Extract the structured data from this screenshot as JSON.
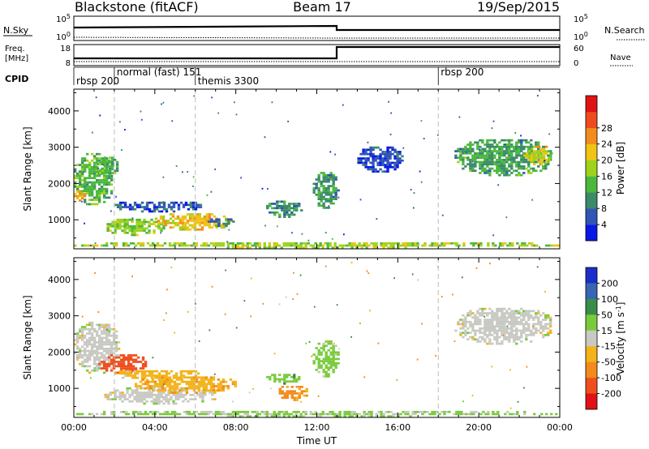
{
  "header": {
    "title_left": "Blackstone (fitACF)",
    "title_center": "Beam 17",
    "title_right": "19/Sep/2015"
  },
  "top_panels": {
    "nsky_label": "N.Sky",
    "nsearch_label": "N.Search",
    "nsky_ticks": [
      "10^5",
      "10^0"
    ],
    "nsky_ticks_right": [
      "10^5",
      "10^0"
    ],
    "freq_label_1": "Freq.",
    "freq_label_2": "[MHz]",
    "freq_ticks": [
      "18",
      "8"
    ],
    "nave_label": "Nave",
    "nave_ticks": [
      "60",
      "0"
    ],
    "cpid_label": "CPID",
    "cpid_entries": [
      {
        "label": "rbsp 200",
        "t": 0.0
      },
      {
        "label": "normal (fast) 151",
        "t": 2.0
      },
      {
        "label": "themis 3300",
        "t": 6.0
      },
      {
        "label": "rbsp 200",
        "t": 18.0
      }
    ]
  },
  "chart_data": [
    {
      "type": "heatmap",
      "xlabel": "",
      "ylabel": "Slant Range [km]",
      "xlim": [
        0,
        24
      ],
      "ylim": [
        200,
        4600
      ],
      "yticks": [
        "1000",
        "2000",
        "3000",
        "4000"
      ],
      "colorbar": {
        "label": "Power [dB]",
        "ticks": [
          "4",
          "8",
          "12",
          "16",
          "20",
          "24",
          "28"
        ],
        "colors": [
          "#0a18e6",
          "#2f55b5",
          "#3b8a6a",
          "#49b83d",
          "#9ed21c",
          "#f1c313",
          "#f28c1c",
          "#ee4c1f",
          "#e01216"
        ]
      },
      "regions": [
        {
          "t0": 0.0,
          "t1": 1.9,
          "r0": 1400,
          "r1": 2800,
          "v": 14
        },
        {
          "t0": 0.0,
          "t1": 0.6,
          "r0": 1500,
          "r1": 1800,
          "v": 24
        },
        {
          "t0": 1.0,
          "t1": 2.2,
          "r0": 2200,
          "r1": 2700,
          "v": 13
        },
        {
          "t0": 2.0,
          "t1": 6.3,
          "r0": 1200,
          "r1": 1500,
          "v": 6
        },
        {
          "t0": 1.5,
          "t1": 4.4,
          "r0": 550,
          "r1": 1000,
          "v": 17
        },
        {
          "t0": 4.0,
          "t1": 7.8,
          "r0": 700,
          "r1": 1150,
          "v": 22
        },
        {
          "t0": 6.5,
          "t1": 8.0,
          "r0": 800,
          "r1": 1000,
          "v": 8
        },
        {
          "t0": 9.5,
          "t1": 11.2,
          "r0": 1050,
          "r1": 1500,
          "v": 10
        },
        {
          "t0": 11.8,
          "t1": 13.0,
          "r0": 1300,
          "r1": 2300,
          "v": 11
        },
        {
          "t0": 14.0,
          "t1": 16.2,
          "r0": 2300,
          "r1": 3000,
          "v": 5
        },
        {
          "t0": 18.8,
          "t1": 23.6,
          "r0": 2200,
          "r1": 3200,
          "v": 12
        },
        {
          "t0": 22.2,
          "t1": 23.6,
          "r0": 2500,
          "r1": 3000,
          "v": 20
        },
        {
          "t0": 0.0,
          "t1": 24.0,
          "r0": 200,
          "r1": 350,
          "v": 18
        }
      ]
    },
    {
      "type": "heatmap",
      "xlabel": "Time UT",
      "ylabel": "Slant Range [km]",
      "xlim": [
        0,
        24
      ],
      "ylim": [
        200,
        4600
      ],
      "yticks": [
        "1000",
        "2000",
        "3000",
        "4000"
      ],
      "xticks": [
        "00:00",
        "04:00",
        "08:00",
        "12:00",
        "16:00",
        "20:00",
        "00:00"
      ],
      "colorbar": {
        "label": "Velocity [m s^-1]",
        "ticks": [
          "200",
          "100",
          "50",
          "15",
          "-15",
          "-50",
          "-100",
          "-200"
        ],
        "colors": [
          "#1a2fc9",
          "#3a64b4",
          "#3a8c4a",
          "#7acb3c",
          "#c9c9c3",
          "#f3b31b",
          "#f38a1c",
          "#ef4f1f",
          "#e01216"
        ]
      },
      "regions": [
        {
          "t0": 0.0,
          "t1": 2.2,
          "r0": 1400,
          "r1": 2800,
          "v": 0
        },
        {
          "t0": 1.2,
          "t1": 3.6,
          "r0": 1400,
          "r1": 1900,
          "v": -150
        },
        {
          "t0": 2.0,
          "t1": 6.2,
          "r0": 1200,
          "r1": 1500,
          "v": -30
        },
        {
          "t0": 1.5,
          "t1": 7.0,
          "r0": 550,
          "r1": 1000,
          "v": 0
        },
        {
          "t0": 3.0,
          "t1": 8.0,
          "r0": 850,
          "r1": 1300,
          "v": -40
        },
        {
          "t0": 9.5,
          "t1": 11.2,
          "r0": 1100,
          "r1": 1400,
          "v": 40
        },
        {
          "t0": 10.0,
          "t1": 11.5,
          "r0": 650,
          "r1": 1050,
          "v": -60
        },
        {
          "t0": 11.8,
          "t1": 13.0,
          "r0": 1300,
          "r1": 2300,
          "v": 30
        },
        {
          "t0": 18.8,
          "t1": 23.6,
          "r0": 2200,
          "r1": 3200,
          "v": 0
        },
        {
          "t0": 0.0,
          "t1": 24.0,
          "r0": 200,
          "r1": 350,
          "v": 20
        }
      ]
    }
  ]
}
